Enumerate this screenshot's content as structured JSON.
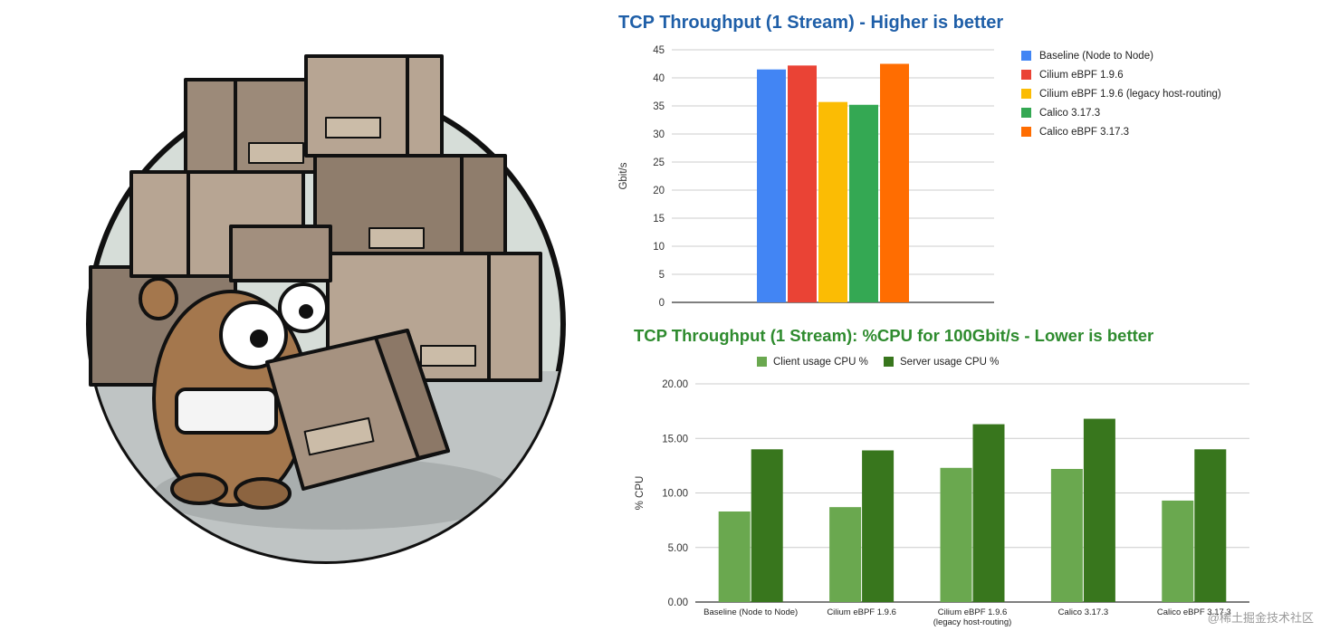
{
  "watermark": "@稀土掘金技术社区",
  "illustration": {
    "subject": "gopher-carrying-boxes"
  },
  "chart_data": [
    {
      "type": "bar",
      "title": "TCP Throughput (1 Stream) - Higher is better",
      "ylabel": "Gbit/s",
      "xlabel": "",
      "ylim": [
        0,
        45
      ],
      "yticks": [
        "0",
        "5",
        "10",
        "15",
        "20",
        "25",
        "30",
        "35",
        "40",
        "45"
      ],
      "ytick_values": [
        0,
        5,
        10,
        15,
        20,
        25,
        30,
        35,
        40,
        45
      ],
      "grid": true,
      "legend_position": "right",
      "series": [
        {
          "name": "Baseline (Node to Node)",
          "color": "#4285f4",
          "values": [
            41.5
          ]
        },
        {
          "name": "Cilium eBPF 1.9.6",
          "color": "#ea4335",
          "values": [
            42.2
          ]
        },
        {
          "name": "Cilium eBPF 1.9.6 (legacy host-routing)",
          "color": "#fbbc04",
          "values": [
            35.7
          ]
        },
        {
          "name": "Calico 3.17.3",
          "color": "#34a853",
          "values": [
            35.2
          ]
        },
        {
          "name": "Calico eBPF 3.17.3",
          "color": "#ff6d01",
          "values": [
            42.5
          ]
        }
      ]
    },
    {
      "type": "bar",
      "title": "TCP Throughput (1 Stream): %CPU for 100Gbit/s - Lower is better",
      "ylabel": "% CPU",
      "xlabel": "",
      "ylim": [
        0,
        20
      ],
      "yticks": [
        "0.00",
        "5.00",
        "10.00",
        "15.00",
        "20.00"
      ],
      "ytick_values": [
        0,
        5,
        10,
        15,
        20
      ],
      "grid": true,
      "legend_position": "top",
      "categories": [
        "Baseline (Node to Node)",
        "Cilium eBPF 1.9.6",
        "Cilium eBPF 1.9.6 (legacy host-routing)",
        "Calico 3.17.3",
        "Calico eBPF 3.17.3"
      ],
      "category_lines": [
        [
          "Baseline (Node to Node)"
        ],
        [
          "Cilium eBPF 1.9.6"
        ],
        [
          "Cilium eBPF 1.9.6",
          "(legacy host-routing)"
        ],
        [
          "Calico 3.17.3"
        ],
        [
          "Calico eBPF 3.17.3"
        ]
      ],
      "series": [
        {
          "name": "Client usage CPU %",
          "color": "#6aa84f",
          "values": [
            8.3,
            8.7,
            12.3,
            12.2,
            9.3
          ]
        },
        {
          "name": "Server usage CPU %",
          "color": "#38761d",
          "values": [
            14.0,
            13.9,
            16.3,
            16.8,
            14.0
          ]
        }
      ]
    }
  ]
}
